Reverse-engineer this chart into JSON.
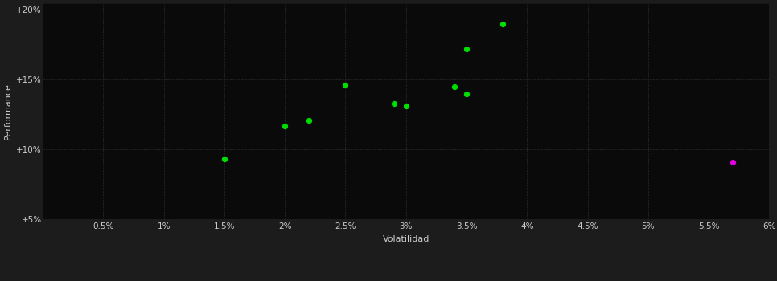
{
  "background_color": "#1c1c1c",
  "plot_bg_color": "#0a0a0a",
  "grid_color": "#2a2a2a",
  "text_color": "#cccccc",
  "xlabel": "Volatilidad",
  "ylabel": "Performance",
  "xlim": [
    0.0,
    0.06
  ],
  "ylim": [
    0.05,
    0.205
  ],
  "xticks": [
    0.005,
    0.01,
    0.015,
    0.02,
    0.025,
    0.03,
    0.035,
    0.04,
    0.045,
    0.05,
    0.055,
    0.06
  ],
  "xtick_labels": [
    "0.5%",
    "1%",
    "1.5%",
    "2%",
    "2.5%",
    "3%",
    "3.5%",
    "4%",
    "4.5%",
    "5%",
    "5.5%",
    "6%"
  ],
  "yticks": [
    0.05,
    0.1,
    0.15,
    0.2
  ],
  "ytick_labels": [
    "+5%",
    "+10%",
    "+15%",
    "+20%"
  ],
  "green_points": [
    [
      0.015,
      0.093
    ],
    [
      0.02,
      0.117
    ],
    [
      0.022,
      0.121
    ],
    [
      0.025,
      0.146
    ],
    [
      0.029,
      0.133
    ],
    [
      0.03,
      0.131
    ],
    [
      0.034,
      0.145
    ],
    [
      0.035,
      0.14
    ],
    [
      0.035,
      0.172
    ],
    [
      0.038,
      0.19
    ]
  ],
  "magenta_points": [
    [
      0.057,
      0.091
    ]
  ],
  "green_color": "#00dd00",
  "magenta_color": "#dd00dd",
  "marker_size": 18
}
